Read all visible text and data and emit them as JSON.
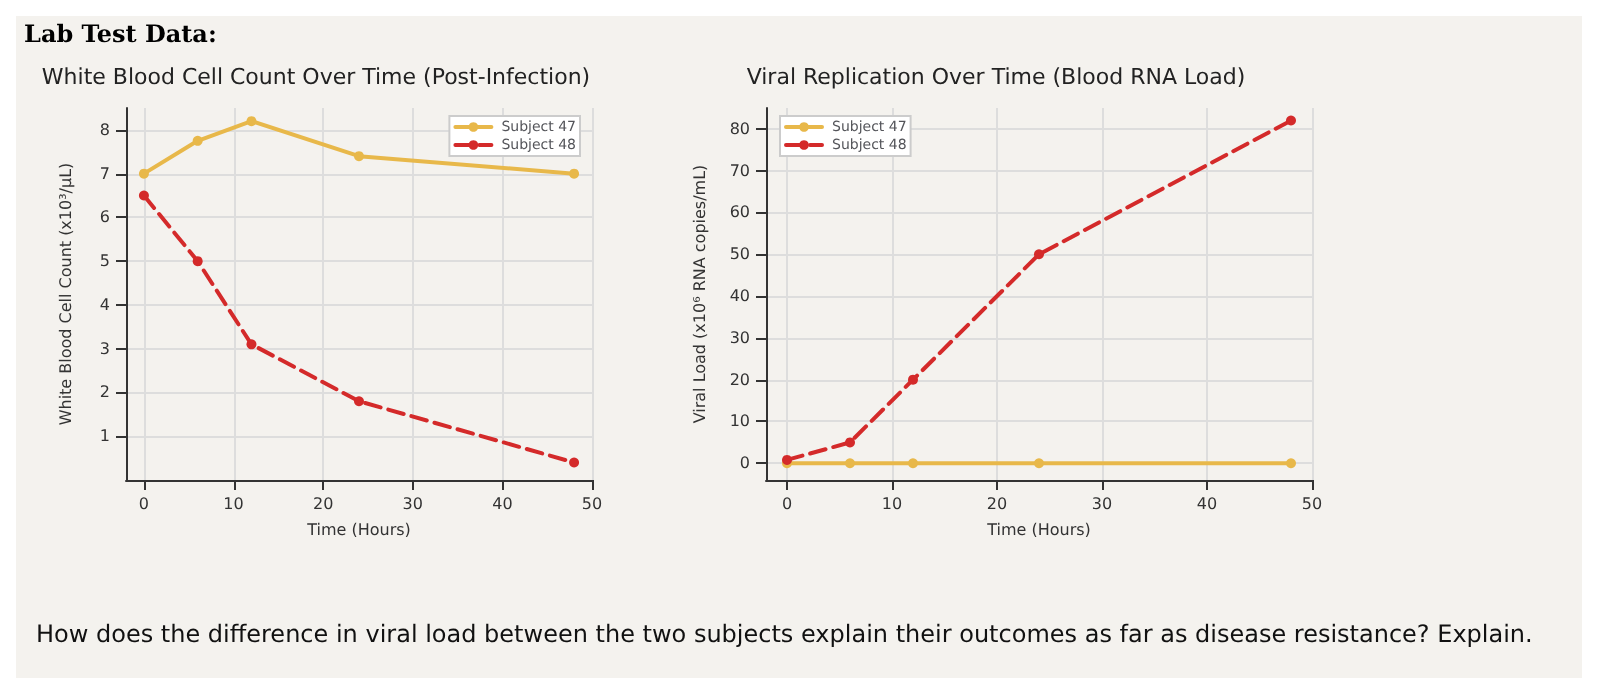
{
  "chart_data": [
    {
      "type": "line",
      "title": "White Blood Cell Count Over Time (Post-Infection)",
      "xlabel": "Time (Hours)",
      "ylabel": "White Blood Cell Count (x10³/µL)",
      "annotations": [
        "Lab Test Data:"
      ],
      "xlim": [
        -2,
        50
      ],
      "xticks": [
        0,
        10,
        20,
        30,
        40,
        50
      ],
      "ylim": [
        0,
        8.5
      ],
      "yticks": [
        1,
        2,
        3,
        4,
        5,
        6,
        7,
        8
      ],
      "grid": true,
      "legend": "top right",
      "marker": "circle",
      "series": [
        {
          "name": "Subject 47",
          "color": "#e8b84a",
          "line_style": "solid",
          "x": [
            0,
            6,
            12,
            24,
            48
          ],
          "values": [
            7.0,
            7.75,
            8.2,
            7.4,
            7.0
          ]
        },
        {
          "name": "Subject 48",
          "color": "#d42a2a",
          "line_style": "dashed",
          "x": [
            0,
            6,
            12,
            24,
            48
          ],
          "values": [
            6.5,
            5.0,
            3.1,
            1.8,
            0.4
          ]
        }
      ]
    },
    {
      "type": "line",
      "title": "Viral Replication Over Time (Blood RNA Load)",
      "xlabel": "Time (Hours)",
      "ylabel": "Viral Load (x10⁶ RNA copies/mL)",
      "annotations": [
        "How does the difference in viral load between the two subjects explain their outcomes as far as disease resistance? Explain."
      ],
      "xlim": [
        -2,
        50
      ],
      "xticks": [
        0,
        10,
        20,
        30,
        40,
        50
      ],
      "ylim": [
        -4,
        85
      ],
      "yticks": [
        0,
        10,
        20,
        30,
        40,
        50,
        60,
        70,
        80
      ],
      "grid": true,
      "legend": "top left",
      "marker": "circle",
      "series": [
        {
          "name": "Subject 47",
          "color": "#e8b84a",
          "line_style": "solid",
          "x": [
            0,
            6,
            12,
            24,
            48
          ],
          "values": [
            0,
            0,
            0,
            0,
            0
          ]
        },
        {
          "name": "Subject 48",
          "color": "#d42a2a",
          "line_style": "dashed",
          "x": [
            0,
            6,
            12,
            24,
            48
          ],
          "values": [
            0.8,
            5,
            20,
            50,
            82
          ]
        }
      ]
    }
  ]
}
